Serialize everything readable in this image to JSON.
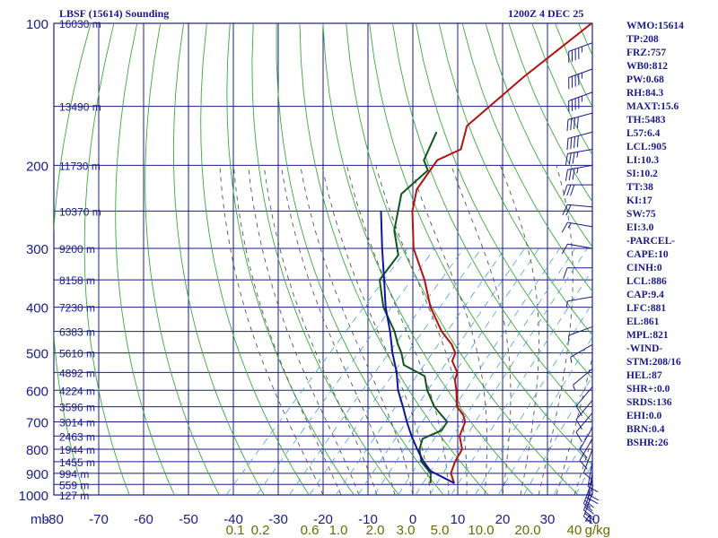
{
  "header": {
    "station": "LBSF (15614) Sounding",
    "time": "1200Z  4 DEC 25"
  },
  "indices": [
    "WMO:15614",
    "TP:208",
    "FRZ:757",
    "WB0:812",
    "PW:0.68",
    "RH:84.3",
    "MAXT:15.6",
    "TH:5483",
    "L57:6.4",
    "LCL:905",
    "LI:10.3",
    "SI:10.2",
    "TT:38",
    "KI:17",
    "SW:75",
    "EI:3.0",
    "-PARCEL-",
    "CAPE:10",
    "CINH:0",
    "LCL:886",
    "CAP:9.4",
    "LFC:881",
    "EL:861",
    "MPL:821",
    "-WIND-",
    "STM:208/16",
    "HEL:87",
    "SHR+:0.0",
    "SRDS:136",
    "EHI:0.0",
    "BRN:0.4",
    "BSHR:26"
  ],
  "chart_data": {
    "type": "line",
    "chart_kind": "skew-T log-P sounding",
    "y_axis": {
      "scale": "log",
      "unit": "mb",
      "range": [
        100,
        1000
      ],
      "ticks": [
        100,
        200,
        300,
        400,
        500,
        600,
        700,
        800,
        900,
        1000
      ]
    },
    "x_axis": {
      "unit": "°C",
      "range": [
        -80,
        40
      ],
      "ticks": [
        -80,
        -70,
        -60,
        -50,
        -40,
        -30,
        -20,
        -10,
        0,
        10,
        20,
        30,
        40
      ],
      "tick_labels": [
        "-80",
        "-70",
        "-60",
        "-50",
        "-40",
        "-30",
        "-20",
        "-10",
        "0",
        "10",
        "20",
        "30",
        "40"
      ],
      "unit_label": "mb"
    },
    "mixing_ratio_labels": {
      "unit": "g/kg",
      "values": [
        "0.1",
        "0.2",
        "0.6",
        "1.0",
        "2.0",
        "3.0",
        "5.0",
        "10.0",
        "20.0",
        "40"
      ],
      "unit_label": "g/kg"
    },
    "height_labels": [
      {
        "p": 100,
        "h": "16030 m"
      },
      {
        "p": 150,
        "h": "13490 m"
      },
      {
        "p": 200,
        "h": "11730 m"
      },
      {
        "p": 250,
        "h": "10370 m"
      },
      {
        "p": 300,
        "h": "9200 m"
      },
      {
        "p": 350,
        "h": "8158 m"
      },
      {
        "p": 400,
        "h": "7230 m"
      },
      {
        "p": 450,
        "h": "6383 m"
      },
      {
        "p": 500,
        "h": "5610 m"
      },
      {
        "p": 550,
        "h": "4892 m"
      },
      {
        "p": 600,
        "h": "4224 m"
      },
      {
        "p": 650,
        "h": "3596 m"
      },
      {
        "p": 700,
        "h": "3014 m"
      },
      {
        "p": 750,
        "h": "2463 m"
      },
      {
        "p": 800,
        "h": "1944 m"
      },
      {
        "p": 850,
        "h": "1455 m"
      },
      {
        "p": 900,
        "h": "994 m"
      },
      {
        "p": 950,
        "h": "559 m"
      },
      {
        "p": 1000,
        "h": "127 m"
      }
    ],
    "series": [
      {
        "role": "temperature",
        "color": "#b3120f",
        "points": [
          [
            100,
            -58.0
          ],
          [
            130,
            -62.0
          ],
          [
            165,
            -64.5
          ],
          [
            185,
            -61.0
          ],
          [
            195,
            -64.0
          ],
          [
            205,
            -63.5
          ],
          [
            225,
            -62.5
          ],
          [
            250,
            -59.0
          ],
          [
            300,
            -51.0
          ],
          [
            350,
            -42.0
          ],
          [
            400,
            -35.0
          ],
          [
            450,
            -27.5
          ],
          [
            480,
            -22.5
          ],
          [
            500,
            -20.0
          ],
          [
            520,
            -19.0
          ],
          [
            550,
            -15.5
          ],
          [
            570,
            -14.5
          ],
          [
            600,
            -12.0
          ],
          [
            650,
            -8.5
          ],
          [
            675,
            -5.5
          ],
          [
            700,
            -3.5
          ],
          [
            750,
            -1.8
          ],
          [
            800,
            1.5
          ],
          [
            850,
            2.5
          ],
          [
            900,
            4.0
          ],
          [
            935,
            6.2
          ],
          [
            944,
            6.8
          ]
        ]
      },
      {
        "role": "dewpoint",
        "color": "#11551b",
        "points": [
          [
            170,
            -70.0
          ],
          [
            195,
            -67.0
          ],
          [
            205,
            -64.0
          ],
          [
            230,
            -65.0
          ],
          [
            275,
            -59.0
          ],
          [
            310,
            -53.0
          ],
          [
            350,
            -52.0
          ],
          [
            400,
            -45.5
          ],
          [
            450,
            -38.0
          ],
          [
            480,
            -34.5
          ],
          [
            500,
            -32.0
          ],
          [
            530,
            -29.0
          ],
          [
            560,
            -22.0
          ],
          [
            600,
            -18.5
          ],
          [
            650,
            -13.5
          ],
          [
            700,
            -7.5
          ],
          [
            730,
            -7.0
          ],
          [
            760,
            -9.5
          ],
          [
            800,
            -8.0
          ],
          [
            850,
            -5.0
          ],
          [
            900,
            -0.5
          ],
          [
            944,
            1.5
          ]
        ]
      },
      {
        "role": "parcel",
        "color": "#0d159c",
        "points": [
          [
            250,
            -66.0
          ],
          [
            300,
            -58.0
          ],
          [
            350,
            -51.0
          ],
          [
            400,
            -45.0
          ],
          [
            450,
            -39.0
          ],
          [
            500,
            -34.0
          ],
          [
            550,
            -29.0
          ],
          [
            600,
            -25.0
          ],
          [
            650,
            -20.5
          ],
          [
            700,
            -16.5
          ],
          [
            750,
            -12.5
          ],
          [
            800,
            -8.5
          ],
          [
            850,
            -4.5
          ],
          [
            890,
            -1.0
          ],
          [
            944,
            6.8
          ]
        ]
      }
    ],
    "wind_barbs": [
      {
        "p": 110,
        "dir": 250,
        "kt": 45
      },
      {
        "p": 125,
        "dir": 250,
        "kt": 45
      },
      {
        "p": 140,
        "dir": 250,
        "kt": 45
      },
      {
        "p": 155,
        "dir": 255,
        "kt": 40
      },
      {
        "p": 170,
        "dir": 255,
        "kt": 40
      },
      {
        "p": 185,
        "dir": 260,
        "kt": 35
      },
      {
        "p": 200,
        "dir": 260,
        "kt": 35
      },
      {
        "p": 220,
        "dir": 270,
        "kt": 30
      },
      {
        "p": 245,
        "dir": 275,
        "kt": 20
      },
      {
        "p": 270,
        "dir": 280,
        "kt": 15
      },
      {
        "p": 300,
        "dir": 280,
        "kt": 10
      },
      {
        "p": 330,
        "dir": 270,
        "kt": 10
      },
      {
        "p": 380,
        "dir": 260,
        "kt": 5
      },
      {
        "p": 440,
        "dir": 250,
        "kt": 5
      },
      {
        "p": 480,
        "dir": 240,
        "kt": 5
      },
      {
        "p": 540,
        "dir": 230,
        "kt": 5
      },
      {
        "p": 590,
        "dir": 220,
        "kt": 10
      },
      {
        "p": 630,
        "dir": 220,
        "kt": 10
      },
      {
        "p": 670,
        "dir": 220,
        "kt": 10
      },
      {
        "p": 720,
        "dir": 210,
        "kt": 10
      },
      {
        "p": 760,
        "dir": 210,
        "kt": 10
      },
      {
        "p": 800,
        "dir": 200,
        "kt": 10
      },
      {
        "p": 850,
        "dir": 190,
        "kt": 15
      },
      {
        "p": 900,
        "dir": 190,
        "kt": 20
      },
      {
        "p": 930,
        "dir": 200,
        "kt": 25
      },
      {
        "p": 960,
        "dir": 200,
        "kt": 25
      },
      {
        "p": 990,
        "dir": 200,
        "kt": 20
      }
    ],
    "colors": {
      "grid": "#1a1a8c",
      "dry_adiabat": "#3aa83a",
      "moist_adiabat": "#555555",
      "mixing_ratio": "#4a9fd8",
      "text": "#1a1a8c",
      "mixing_ratio_text": "#6b6b00"
    }
  }
}
